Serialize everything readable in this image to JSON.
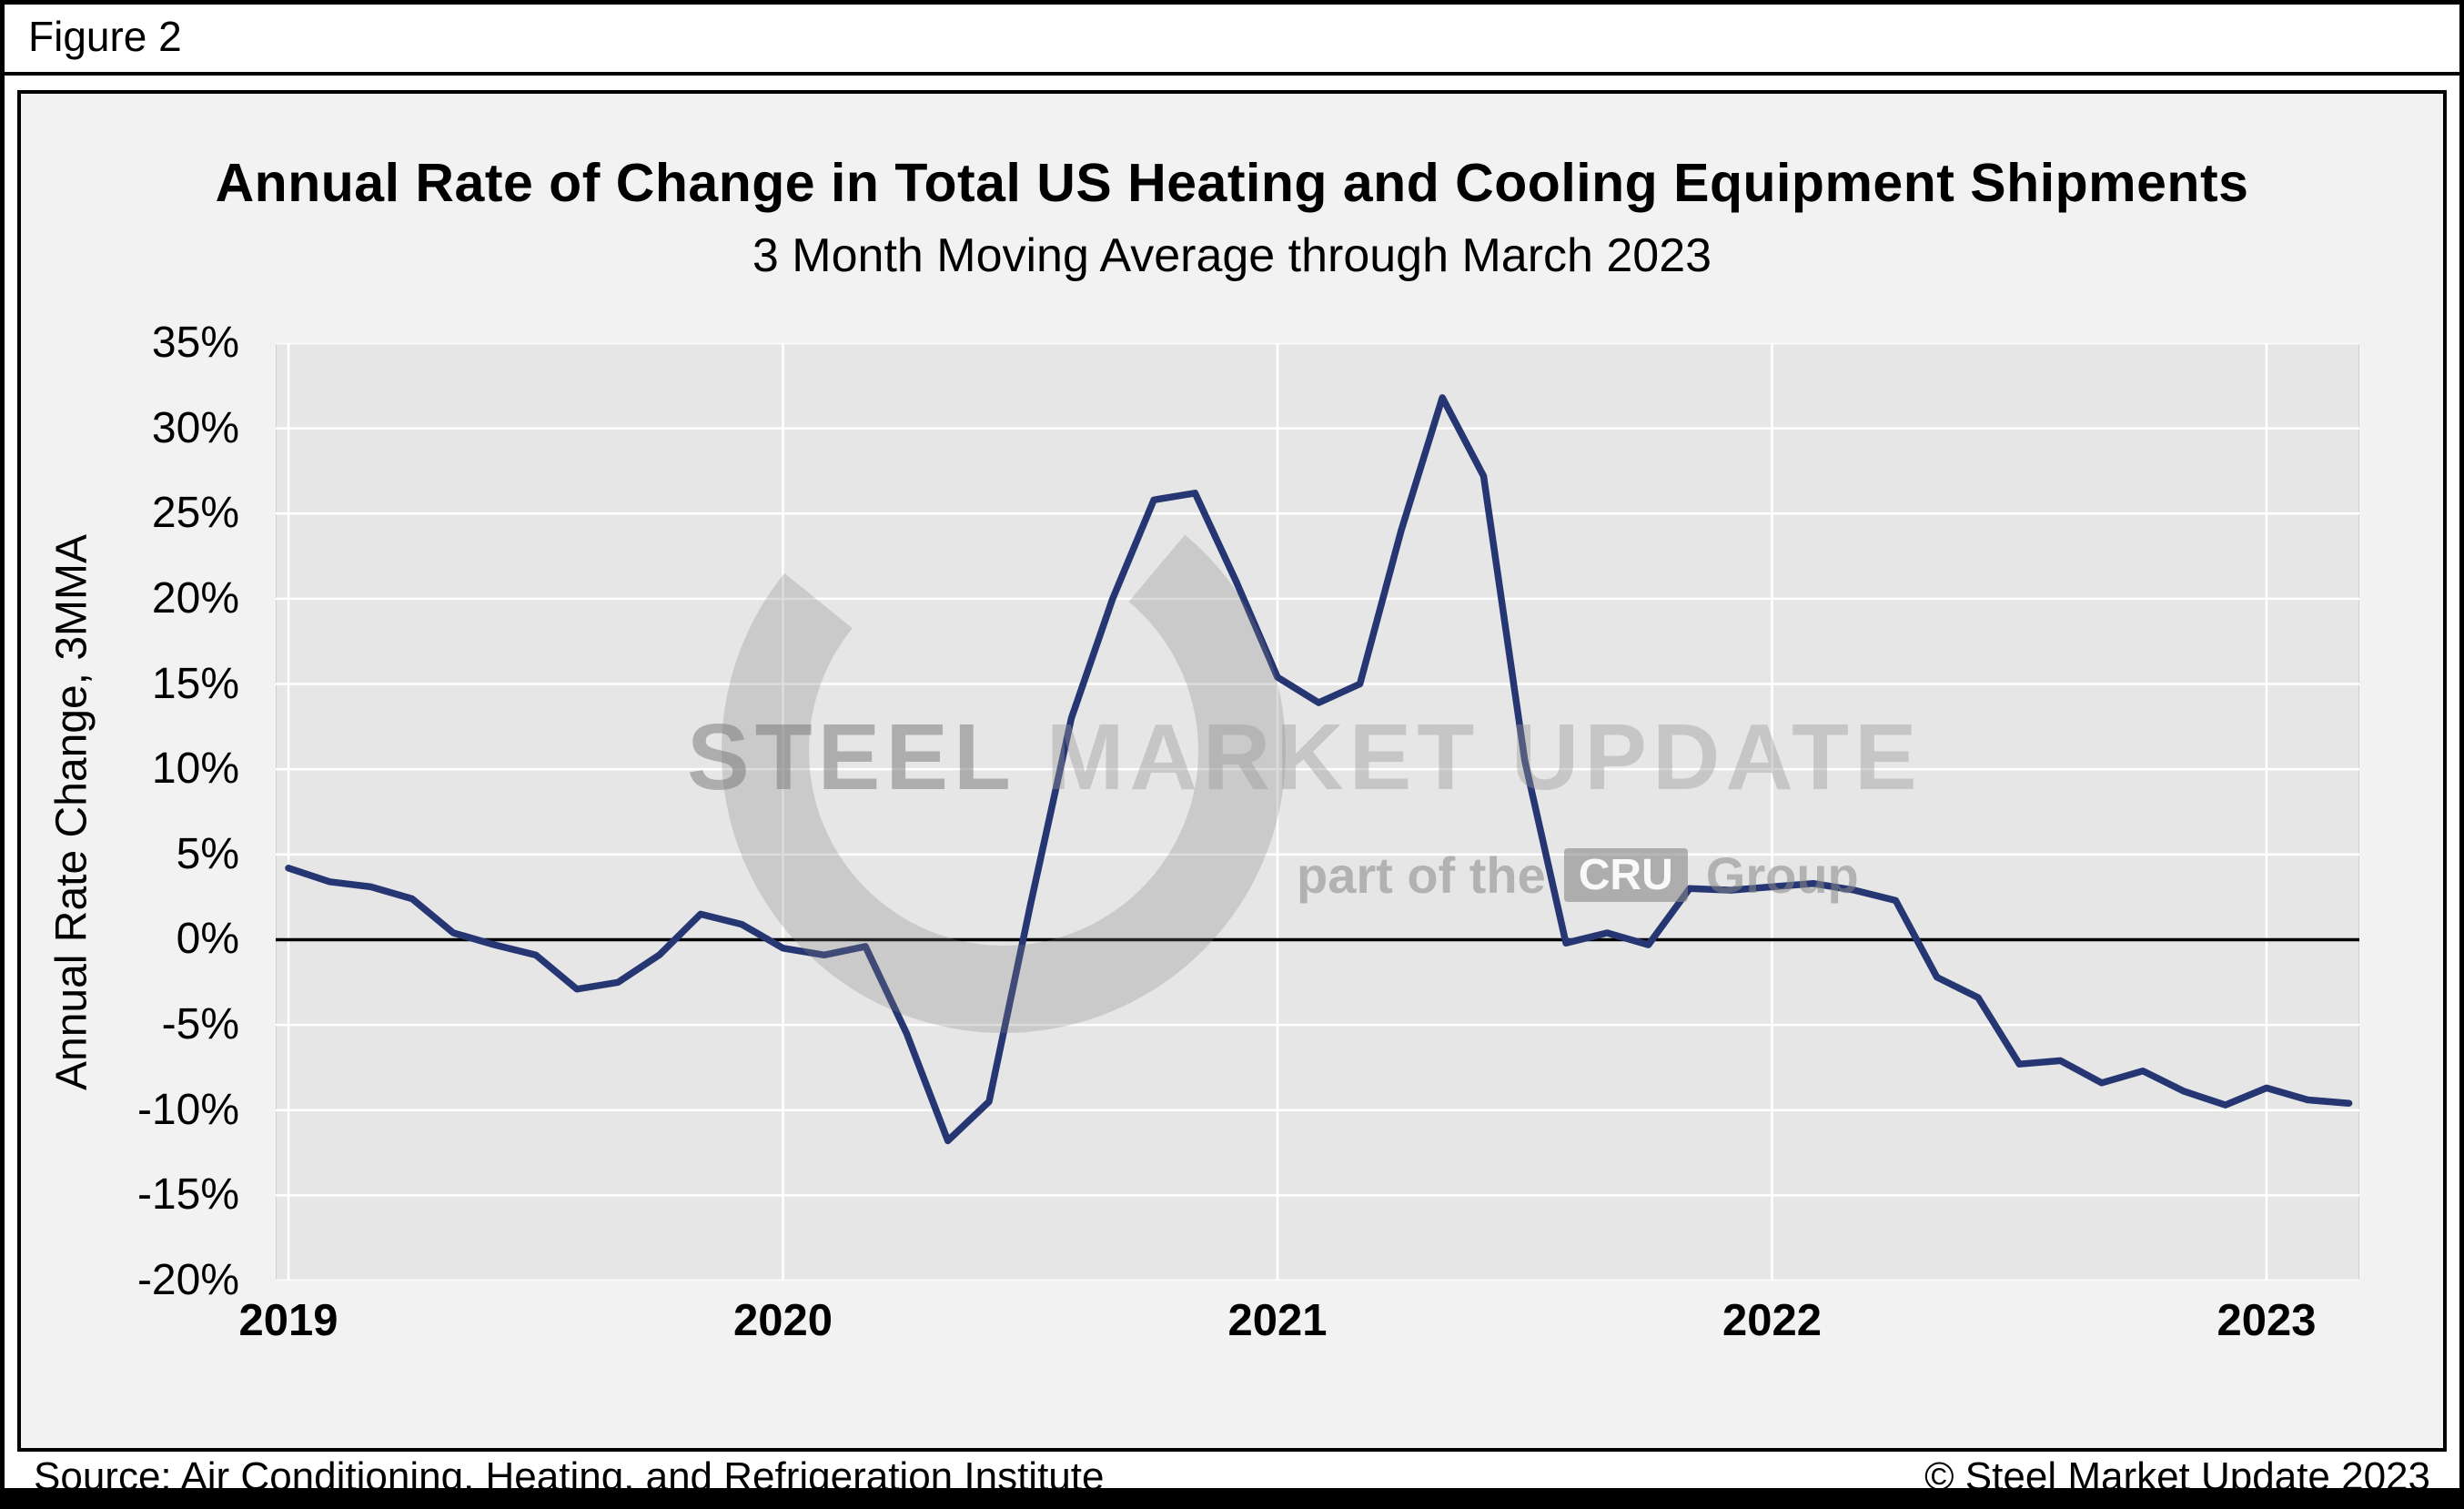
{
  "figure_label": "Figure 2",
  "title": "Annual Rate of Change in Total US Heating and Cooling Equipment Shipments",
  "subtitle": "3 Month Moving Average through March 2023",
  "watermark": {
    "steel": "STEEL",
    "market_update": " MARKET UPDATE",
    "part_of_the": "part of the",
    "cru": "CRU",
    "group": "Group"
  },
  "footer": {
    "source": "Source: Air Conditioning, Heating, and Refrigeration Institute",
    "copyright": "© Steel Market Update 2023"
  },
  "colors": {
    "line": "#263672",
    "plot_background": "#e6e6e6",
    "chart_background": "#f2f2f2",
    "gridline": "#ffffff",
    "zero_line": "#000000"
  },
  "chart_data": {
    "type": "line",
    "title": "Annual Rate of Change in Total US Heating and Cooling Equipment Shipments",
    "subtitle": "3 Month Moving Average through March 2023",
    "xlabel": "",
    "ylabel": "Annual Rate Change, 3MMA",
    "ylim": [
      -20,
      35
    ],
    "ytick_step": 5,
    "ytick_labels": [
      "35%",
      "30%",
      "25%",
      "20%",
      "15%",
      "10%",
      "5%",
      "0%",
      "-5%",
      "-10%",
      "-15%",
      "-20%"
    ],
    "xtick_labels": [
      "2019",
      "2020",
      "2021",
      "2022",
      "2023"
    ],
    "grid": true,
    "legend": "none",
    "series": [
      {
        "name": "Annual rate of change, 3MMA",
        "x": [
          "2019-01",
          "2019-02",
          "2019-03",
          "2019-04",
          "2019-05",
          "2019-06",
          "2019-07",
          "2019-08",
          "2019-09",
          "2019-10",
          "2019-11",
          "2019-12",
          "2020-01",
          "2020-02",
          "2020-03",
          "2020-04",
          "2020-05",
          "2020-06",
          "2020-07",
          "2020-08",
          "2020-09",
          "2020-10",
          "2020-11",
          "2020-12",
          "2021-01",
          "2021-02",
          "2021-03",
          "2021-04",
          "2021-05",
          "2021-06",
          "2021-07",
          "2021-08",
          "2021-09",
          "2021-10",
          "2021-11",
          "2021-12",
          "2022-01",
          "2022-02",
          "2022-03",
          "2022-04",
          "2022-05",
          "2022-06",
          "2022-07",
          "2022-08",
          "2022-09",
          "2022-10",
          "2022-11",
          "2022-12",
          "2023-01",
          "2023-02",
          "2023-03"
        ],
        "values": [
          4.2,
          3.4,
          3.1,
          2.4,
          0.4,
          -0.3,
          -0.9,
          -2.9,
          -2.5,
          -0.9,
          1.5,
          0.9,
          -0.5,
          -0.9,
          -0.4,
          -5.5,
          -11.8,
          -9.5,
          2.0,
          13.0,
          20.0,
          25.8,
          26.2,
          21.0,
          15.4,
          13.9,
          15.0,
          24.0,
          31.8,
          27.2,
          10.5,
          -0.2,
          0.4,
          -0.3,
          3.0,
          2.9,
          3.1,
          3.3,
          2.9,
          2.3,
          -2.2,
          -3.4,
          -7.3,
          -7.1,
          -8.4,
          -7.7,
          -8.9,
          -9.7,
          -8.7,
          -9.4,
          -9.6
        ]
      }
    ]
  }
}
